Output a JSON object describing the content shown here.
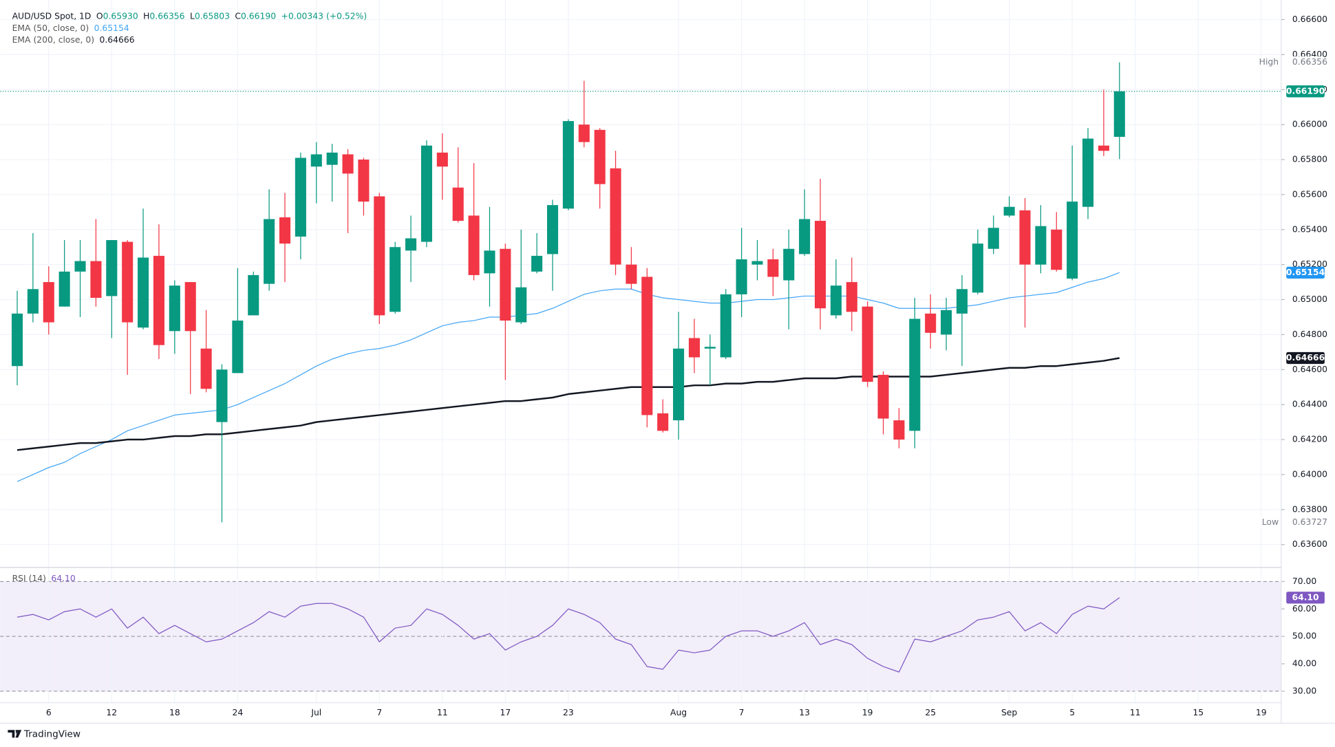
{
  "brand": "TradingView",
  "chart_data": [
    {
      "type": "candlestick",
      "title": "AUD/USD Spot, 1D",
      "ohlc_legend": [
        {
          "key": "O",
          "label": "0.65930"
        },
        {
          "key": "H",
          "label": "0.66356"
        },
        {
          "key": "L",
          "label": "0.65803"
        },
        {
          "key": "C",
          "label": "0.66190"
        }
      ],
      "change": "+0.00343 (+0.52%)",
      "up_color": "#089981",
      "down_color": "#f23645",
      "categories": [
        null,
        null,
        "6",
        null,
        null,
        null,
        "12",
        null,
        null,
        null,
        "18",
        null,
        null,
        null,
        "24",
        null,
        null,
        null,
        null,
        "Jul",
        null,
        null,
        null,
        "7",
        null,
        null,
        null,
        "11",
        null,
        null,
        null,
        "17",
        null,
        null,
        null,
        "23",
        null,
        null,
        null,
        null,
        null,
        null,
        "Aug",
        null,
        null,
        null,
        "7",
        null,
        null,
        null,
        "13",
        null,
        null,
        null,
        "19",
        null,
        null,
        null,
        "25",
        null,
        null,
        null,
        null,
        "Sep",
        null,
        null,
        null,
        "5",
        null,
        null,
        null,
        "11",
        null,
        null,
        null,
        "15",
        null,
        null,
        null,
        "19"
      ],
      "open": [
        0.6462,
        0.6492,
        0.651,
        0.6496,
        0.6516,
        0.6522,
        0.6502,
        0.6533,
        0.6484,
        0.6525,
        0.6482,
        0.651,
        0.6472,
        0.643,
        0.6458,
        0.6491,
        0.6509,
        0.6547,
        0.6536,
        0.6576,
        0.6577,
        0.6583,
        0.658,
        0.6559,
        0.6493,
        0.6528,
        0.6533,
        0.6584,
        0.6564,
        0.6548,
        0.6515,
        0.6529,
        0.6487,
        0.6516,
        0.6526,
        0.6552,
        0.66,
        0.6597,
        0.6575,
        0.652,
        0.6513,
        0.6435,
        0.6431,
        0.6478,
        0.6472,
        0.6467,
        0.6503,
        0.652,
        0.6523,
        0.6511,
        0.6526,
        0.6545,
        0.6491,
        0.651,
        0.6496,
        0.6457,
        0.6431,
        0.6425,
        0.6492,
        0.648,
        0.6492,
        0.6504,
        0.6529,
        0.6548,
        0.6551,
        0.652,
        0.654,
        0.6512,
        0.6553,
        0.6588,
        0.6593,
        null,
        null,
        null,
        null,
        null,
        null,
        null,
        null,
        null
      ],
      "high": [
        0.6505,
        0.6538,
        0.6519,
        0.6534,
        0.6534,
        0.6546,
        0.6534,
        0.6534,
        0.6552,
        0.6543,
        0.6511,
        0.651,
        0.6494,
        0.6463,
        0.6518,
        0.6516,
        0.6563,
        0.6561,
        0.6584,
        0.659,
        0.6589,
        0.6586,
        0.6581,
        0.6561,
        0.6533,
        0.6548,
        0.6591,
        0.6595,
        0.6587,
        0.6578,
        0.6553,
        0.6532,
        0.654,
        0.6538,
        0.6557,
        0.6603,
        0.6625,
        0.6598,
        0.6585,
        0.653,
        0.6518,
        0.6443,
        0.6493,
        0.6489,
        0.648,
        0.6506,
        0.6541,
        0.6534,
        0.6529,
        0.654,
        0.6563,
        0.6569,
        0.6523,
        0.6524,
        0.6499,
        0.6459,
        0.6438,
        0.6501,
        0.6503,
        0.6501,
        0.6514,
        0.654,
        0.6548,
        0.6559,
        0.6558,
        0.6554,
        0.655,
        0.6588,
        0.6598,
        0.662,
        0.66356,
        null,
        null,
        null,
        null,
        null,
        null,
        null,
        null,
        null
      ],
      "low": [
        0.6451,
        0.6487,
        0.648,
        0.6496,
        0.649,
        0.6496,
        0.6478,
        0.6457,
        0.6483,
        0.6466,
        0.6469,
        0.6446,
        0.6447,
        0.63727,
        0.6458,
        0.6491,
        0.6505,
        0.651,
        0.6523,
        0.6555,
        0.6556,
        0.6538,
        0.6548,
        0.6486,
        0.6492,
        0.651,
        0.653,
        0.6557,
        0.6544,
        0.6511,
        0.6496,
        0.6454,
        0.6486,
        0.6515,
        0.6505,
        0.6551,
        0.6587,
        0.6552,
        0.6514,
        0.6506,
        0.6427,
        0.6424,
        0.642,
        0.6458,
        0.6451,
        0.6466,
        0.649,
        0.6511,
        0.6502,
        0.6483,
        0.6525,
        0.6483,
        0.6489,
        0.6482,
        0.645,
        0.6423,
        0.6415,
        0.6415,
        0.6472,
        0.6471,
        0.6462,
        0.6503,
        0.6526,
        0.6547,
        0.6484,
        0.6515,
        0.6516,
        0.6511,
        0.6546,
        0.6582,
        0.65803,
        null,
        null,
        null,
        null,
        null,
        null,
        null,
        null,
        null
      ],
      "close": [
        0.6492,
        0.6506,
        0.6487,
        0.6516,
        0.6522,
        0.6501,
        0.6534,
        0.6487,
        0.6524,
        0.6474,
        0.6508,
        0.6482,
        0.6449,
        0.646,
        0.6488,
        0.6514,
        0.6546,
        0.6532,
        0.6581,
        0.6583,
        0.6584,
        0.6572,
        0.6556,
        0.6491,
        0.653,
        0.6535,
        0.6588,
        0.6576,
        0.6545,
        0.6514,
        0.6528,
        0.6488,
        0.6507,
        0.6525,
        0.6554,
        0.6602,
        0.659,
        0.6566,
        0.652,
        0.6509,
        0.6434,
        0.6425,
        0.6472,
        0.6467,
        0.6473,
        0.6503,
        0.6523,
        0.6522,
        0.6513,
        0.6529,
        0.6546,
        0.6495,
        0.6508,
        0.6493,
        0.6453,
        0.6432,
        0.642,
        0.6489,
        0.6481,
        0.6494,
        0.6506,
        0.6532,
        0.6541,
        0.6553,
        0.652,
        0.6542,
        0.6517,
        0.6556,
        0.6592,
        0.6585,
        0.6619,
        null,
        null,
        null,
        null,
        null,
        null,
        null,
        null,
        null
      ],
      "series": [
        {
          "name": "EMA (50, close, 0)",
          "color": "#42a5f5",
          "width": 1,
          "legend_tag": 2,
          "values": [
            0.6396,
            0.64,
            0.6404,
            0.6407,
            0.6412,
            0.6416,
            0.642,
            0.6425,
            0.6428,
            0.6431,
            0.6434,
            0.6435,
            0.6436,
            0.6437,
            0.644,
            0.6444,
            0.6448,
            0.6452,
            0.6457,
            0.6462,
            0.6466,
            0.6469,
            0.6471,
            0.6472,
            0.6474,
            0.6477,
            0.6481,
            0.6485,
            0.6487,
            0.6488,
            0.649,
            0.649,
            0.6491,
            0.6492,
            0.6495,
            0.6499,
            0.6503,
            0.6505,
            0.6506,
            0.6506,
            0.6503,
            0.6501,
            0.65,
            0.6499,
            0.6498,
            0.6498,
            0.6499,
            0.65,
            0.65,
            0.6501,
            0.6502,
            0.6502,
            0.6502,
            0.6502,
            0.65,
            0.6498,
            0.6495,
            0.6495,
            0.6495,
            0.6495,
            0.6496,
            0.6497,
            0.6499,
            0.6501,
            0.6502,
            0.6503,
            0.6504,
            0.6507,
            0.651,
            0.6512,
            0.65154,
            null,
            null,
            null,
            null,
            null,
            null,
            null,
            null,
            null
          ]
        },
        {
          "name": "EMA (200, close, 0)",
          "color": "#131722",
          "width": 2,
          "legend_tag": 3,
          "values": [
            0.6414,
            0.6415,
            0.6416,
            0.6417,
            0.6418,
            0.6418,
            0.6419,
            0.642,
            0.642,
            0.6421,
            0.6422,
            0.6422,
            0.6423,
            0.6423,
            0.6424,
            0.6425,
            0.6426,
            0.6427,
            0.6428,
            0.643,
            0.6431,
            0.6432,
            0.6433,
            0.6434,
            0.6435,
            0.6436,
            0.6437,
            0.6438,
            0.6439,
            0.644,
            0.6441,
            0.6442,
            0.6442,
            0.6443,
            0.6444,
            0.6446,
            0.6447,
            0.6448,
            0.6449,
            0.645,
            0.645,
            0.645,
            0.645,
            0.6451,
            0.6451,
            0.6452,
            0.6452,
            0.6453,
            0.6453,
            0.6454,
            0.6455,
            0.6455,
            0.6455,
            0.6456,
            0.6456,
            0.6456,
            0.6456,
            0.6456,
            0.6456,
            0.6457,
            0.6458,
            0.6459,
            0.646,
            0.6461,
            0.6461,
            0.6462,
            0.6462,
            0.6463,
            0.6464,
            0.6465,
            0.64666,
            null,
            null,
            null,
            null,
            null,
            null,
            null,
            null,
            null
          ]
        }
      ],
      "ylim": [
        0.63469,
        0.66712
      ],
      "yticks": [
        {
          "value": 0.636,
          "label": "0.63600"
        },
        {
          "value": 0.638,
          "label": "0.63800"
        },
        {
          "value": 0.64,
          "label": "0.64000"
        },
        {
          "value": 0.642,
          "label": "0.64200"
        },
        {
          "value": 0.644,
          "label": "0.64400"
        },
        {
          "value": 0.646,
          "label": "0.64600"
        },
        {
          "value": 0.648,
          "label": "0.64800"
        },
        {
          "value": 0.65,
          "label": "0.65000"
        },
        {
          "value": 0.652,
          "label": "0.65200"
        },
        {
          "value": 0.654,
          "label": "0.65400"
        },
        {
          "value": 0.656,
          "label": "0.65600"
        },
        {
          "value": 0.658,
          "label": "0.65800"
        },
        {
          "value": 0.66,
          "label": "0.66000"
        },
        {
          "value": 0.662,
          "label": "0.66200"
        },
        {
          "value": 0.664,
          "label": "0.66400"
        },
        {
          "value": 0.666,
          "label": "0.66600"
        }
      ],
      "grid": true,
      "tags": [
        {
          "text": "High",
          "value": 0.66356,
          "label": "0.66356"
        },
        {
          "value": 0.6619,
          "label": "0.66190",
          "color": "#089981",
          "dotted_line": true
        },
        {
          "value": 0.65154,
          "label": "0.65154",
          "color": "#2196f3"
        },
        {
          "value": 0.64666,
          "label": "0.64666",
          "color": "#131722"
        },
        {
          "text": "Low",
          "value": 0.63727,
          "label": "0.63727"
        }
      ]
    },
    {
      "type": "line",
      "series": [
        {
          "name": "RSI (14)",
          "color": "#7e57c2",
          "width": 1,
          "legend_tag": 0,
          "values": [
            57,
            58,
            56,
            59,
            60,
            57,
            60,
            53,
            57,
            51,
            54,
            51,
            48,
            49,
            52,
            55,
            59,
            57,
            61,
            62,
            62,
            60,
            57,
            48,
            53,
            54,
            60,
            58,
            54,
            49,
            51,
            45,
            48,
            50,
            54,
            60,
            58,
            55,
            49,
            47,
            39,
            38,
            45,
            44,
            45,
            50,
            52,
            52,
            50,
            52,
            55,
            47,
            49,
            47,
            42,
            39,
            37,
            49,
            48,
            50,
            52,
            56,
            57,
            59,
            52,
            55,
            51,
            58,
            61,
            60,
            64.1,
            null,
            null,
            null,
            null,
            null,
            null,
            null,
            null,
            null
          ]
        }
      ],
      "ylim": [
        25.8,
        75.1
      ],
      "yticks": [
        {
          "value": 30,
          "label": "30.00"
        },
        {
          "value": 40,
          "label": "40.00"
        },
        {
          "value": 50,
          "label": "50.00"
        },
        {
          "value": 60,
          "label": "60.00"
        },
        {
          "value": 70,
          "label": "70.00"
        }
      ],
      "band": [
        30,
        70
      ],
      "midline": 50,
      "band_color": "#f2eefa",
      "tags": [
        {
          "value": 64.1,
          "label": "64.10",
          "color": "#7e57c2"
        }
      ]
    }
  ]
}
